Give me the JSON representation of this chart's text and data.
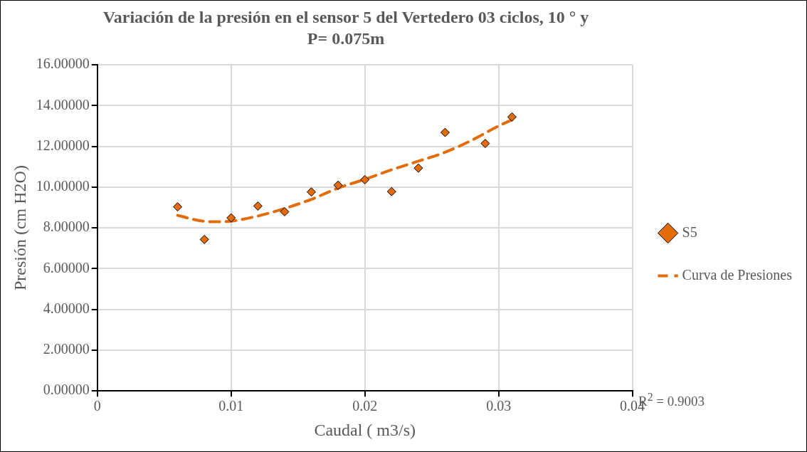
{
  "chart_data": {
    "type": "scatter",
    "title": "Variación de la presión en el sensor 5 del Vertedero 03 ciclos, 10 ° y P= 0.075m",
    "xlabel": "Caudal ( m3/s)",
    "ylabel": "Presión (cm H2O)",
    "series": [
      {
        "name": "S5",
        "type": "scatter",
        "color": "#e36c09",
        "marker": "diamond",
        "x": [
          0.006,
          0.008,
          0.01,
          0.012,
          0.014,
          0.016,
          0.018,
          0.02,
          0.022,
          0.024,
          0.026,
          0.029,
          0.031
        ],
        "values": [
          9.03,
          7.43,
          8.49,
          9.07,
          8.79,
          9.76,
          10.09,
          10.36,
          9.78,
          10.93,
          12.68,
          12.14,
          13.44
        ]
      },
      {
        "name": "Curva de Presiones",
        "type": "line",
        "color": "#e36c09",
        "marker": "none",
        "line_style": "dashed",
        "x": [
          0.006,
          0.008,
          0.009,
          0.01,
          0.012,
          0.014,
          0.016,
          0.018,
          0.02,
          0.022,
          0.024,
          0.026,
          0.028,
          0.03,
          0.031
        ],
        "values": [
          8.61,
          8.32,
          8.3,
          8.33,
          8.58,
          8.95,
          9.4,
          9.95,
          10.38,
          10.85,
          11.27,
          11.71,
          12.3,
          13.0,
          13.3
        ]
      }
    ],
    "xlim": [
      0,
      0.04
    ],
    "xticks": [
      0,
      0.01,
      0.02,
      0.03,
      0.04
    ],
    "ylim": [
      0,
      16
    ],
    "yticks": [
      {
        "value": 0,
        "label": "0.00000"
      },
      {
        "value": 2,
        "label": "2.00000"
      },
      {
        "value": 4,
        "label": "4.00000"
      },
      {
        "value": 6,
        "label": "6.00000"
      },
      {
        "value": 8,
        "label": "8.00000"
      },
      {
        "value": 10,
        "label": "10.00000"
      },
      {
        "value": 12,
        "label": "12.00000"
      },
      {
        "value": 14,
        "label": "14.00000"
      },
      {
        "value": 16,
        "label": "16.00000"
      }
    ],
    "grid": true,
    "legend": "right",
    "annotations": [
      "R$^{2}$ = 0.9003"
    ]
  }
}
